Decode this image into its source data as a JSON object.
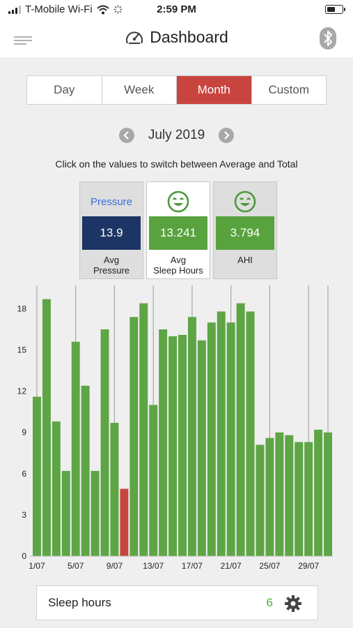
{
  "status_bar": {
    "carrier": "T-Mobile Wi-Fi",
    "time": "2:59 PM"
  },
  "nav": {
    "title": "Dashboard"
  },
  "tabs": [
    {
      "label": "Day",
      "active": false
    },
    {
      "label": "Week",
      "active": false
    },
    {
      "label": "Month",
      "active": true
    },
    {
      "label": "Custom",
      "active": false
    }
  ],
  "period": {
    "label": "July 2019"
  },
  "hint": "Click on the values to switch between Average and Total",
  "cards": [
    {
      "top_label": "Pressure",
      "value": "13.9",
      "caption_line1": "Avg",
      "caption_line2": "Pressure",
      "value_color": "#1d3564",
      "icon": "text"
    },
    {
      "top_label": "",
      "value": "13.241",
      "caption_line1": "Avg",
      "caption_line2": "Sleep Hours",
      "value_color": "#59a33f",
      "icon": "happy-face-icon"
    },
    {
      "top_label": "",
      "value": "3.794",
      "caption_line1": "AHI",
      "caption_line2": "",
      "value_color": "#59a33f",
      "icon": "happy-face-icon"
    }
  ],
  "colors": {
    "accent_red": "#c8453f",
    "bar_green": "#5ea545",
    "bar_red": "#c8453f",
    "navy": "#1d3564"
  },
  "chart_data": {
    "type": "bar",
    "categories": [
      "1/07",
      "2/07",
      "3/07",
      "4/07",
      "5/07",
      "6/07",
      "7/07",
      "8/07",
      "9/07",
      "10/07",
      "11/07",
      "12/07",
      "13/07",
      "14/07",
      "15/07",
      "16/07",
      "17/07",
      "18/07",
      "19/07",
      "20/07",
      "21/07",
      "22/07",
      "23/07",
      "24/07",
      "25/07",
      "26/07",
      "27/07",
      "28/07",
      "29/07",
      "30/07",
      "31/07"
    ],
    "values": [
      11.6,
      18.7,
      9.8,
      6.2,
      15.6,
      12.4,
      6.2,
      16.5,
      9.7,
      4.9,
      17.4,
      18.4,
      11.0,
      16.5,
      16.0,
      16.1,
      17.4,
      15.7,
      17.0,
      17.8,
      17.0,
      18.4,
      17.8,
      8.1,
      8.6,
      9.0,
      8.8,
      8.3,
      8.3,
      9.2,
      9.0
    ],
    "highlight_index": 9,
    "ylim": [
      0,
      19.7
    ],
    "yticks": [
      0,
      3,
      6,
      9,
      12,
      15,
      18
    ],
    "xtick_labels": [
      "1/07",
      "5/07",
      "9/07",
      "13/07",
      "17/07",
      "21/07",
      "25/07",
      "29/07"
    ],
    "xtick_indices": [
      0,
      4,
      8,
      12,
      16,
      20,
      24,
      28
    ],
    "grid": "vertical lines at labeled ticks",
    "title": "",
    "xlabel": "",
    "ylabel": ""
  },
  "bottom": {
    "label": "Sleep hours",
    "value": "6"
  }
}
